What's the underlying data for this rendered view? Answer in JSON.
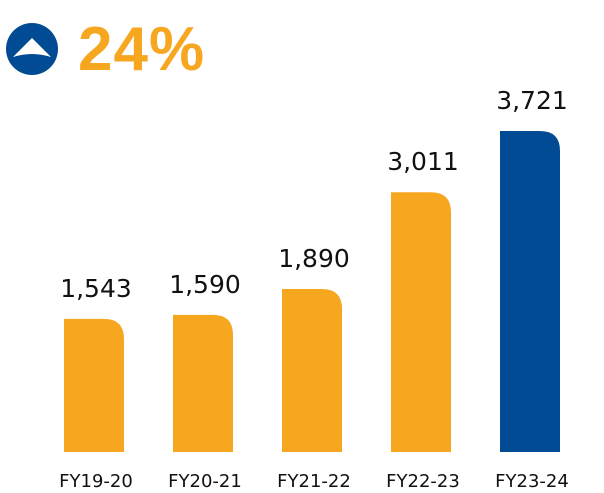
{
  "colors": {
    "bar": "#F7A620",
    "highlight": "#004B93",
    "text": "#111111",
    "growth": "#F7A620"
  },
  "growth": {
    "icon": "up-arrow-circle-icon",
    "value": "24%"
  },
  "chart_data": {
    "type": "bar",
    "title": "",
    "xlabel": "",
    "ylabel": "",
    "categories": [
      "FY19-20",
      "FY20-21",
      "FY21-22",
      "FY22-23",
      "FY23-24"
    ],
    "values": [
      1543,
      1590,
      1890,
      3011,
      3721
    ],
    "value_labels": [
      "1,543",
      "1,590",
      "1,890",
      "3,011",
      "3,721"
    ],
    "highlight_index": 4,
    "ylim": [
      0,
      3721
    ],
    "grid": false,
    "legend": "none"
  }
}
